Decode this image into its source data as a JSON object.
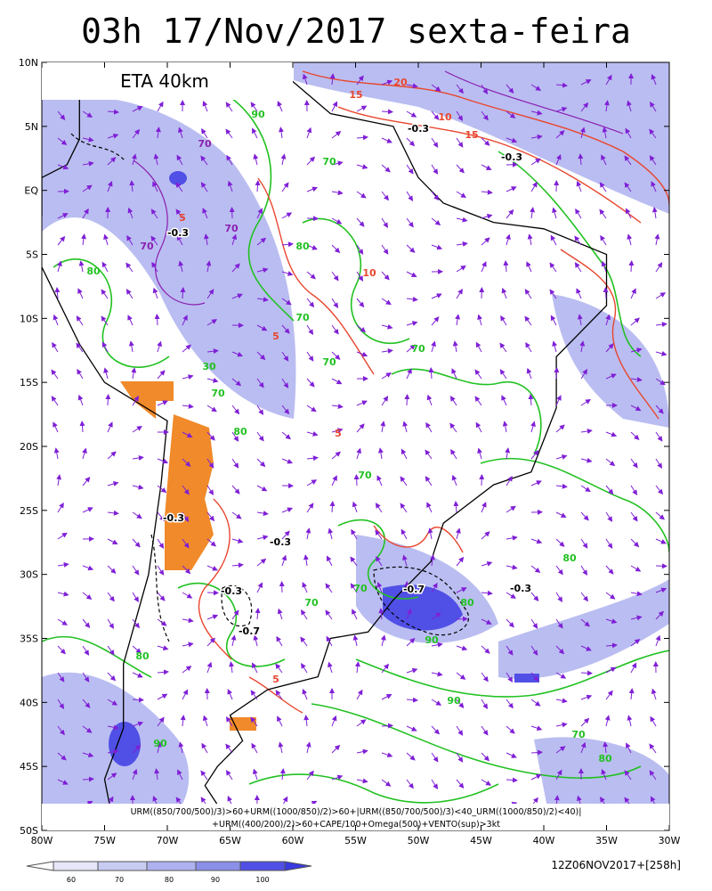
{
  "header": {
    "title": "03h 17/Nov/2017 sexta-feira",
    "model_label": "ETA 40km"
  },
  "latitude_labels": [
    "10N",
    "5N",
    "EQ",
    "5S",
    "10S",
    "15S",
    "20S",
    "25S",
    "30S",
    "35S",
    "40S",
    "45S",
    "50S"
  ],
  "longitude_labels": [
    "80W",
    "75W",
    "70W",
    "65W",
    "60W",
    "55W",
    "50W",
    "45W",
    "40W",
    "35W",
    "30W"
  ],
  "formula": [
    "URM((850/700/500)/3)>60+URM((1000/850)/2)>60+|URM((850/700/500)/3)<40_URM((1000/850)/2)<40)|",
    "+URM((400/200)/2)>60+CAPE/100+Omega(500)+VENTO(sup)>3kt"
  ],
  "contour_labels": [
    "20",
    "15",
    "10",
    "15",
    "-0.3",
    "-0.3",
    "90",
    "70",
    "70",
    "-0.3",
    "70",
    "5",
    "80",
    "70",
    "80",
    "10",
    "70",
    "5",
    "70",
    "70",
    "70",
    "30",
    "5",
    "80",
    "70",
    "-0.3",
    "-0.3",
    "-0.3",
    "-0.7",
    "-0.3",
    "-0.7",
    "80",
    "70",
    "90",
    "70",
    "90",
    "80",
    "5",
    "70",
    "80",
    "90",
    "80"
  ],
  "colorbar_labels": [
    "60",
    "70",
    "80",
    "90",
    "100"
  ],
  "run_stamp": "12Z06NOV2017+[258h]"
}
